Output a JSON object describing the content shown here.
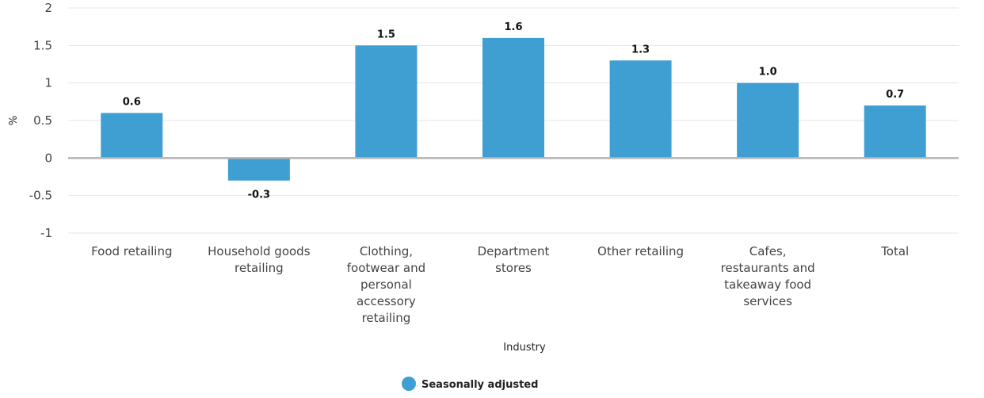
{
  "chart_data": {
    "type": "bar",
    "categories": [
      "Food retailing",
      "Household goods retailing",
      "Clothing, footwear and personal accessory retailing",
      "Department stores",
      "Other retailing",
      "Cafes, restaurants and takeaway food services",
      "Total"
    ],
    "category_label_lines": [
      [
        "Food retailing"
      ],
      [
        "Household goods",
        "retailing"
      ],
      [
        "Clothing,",
        "footwear and",
        "personal",
        "accessory",
        "retailing"
      ],
      [
        "Department",
        "stores"
      ],
      [
        "Other retailing"
      ],
      [
        "Cafes,",
        "restaurants and",
        "takeaway food",
        "services"
      ],
      [
        "Total"
      ]
    ],
    "series": [
      {
        "name": "Seasonally adjusted",
        "values": [
          0.6,
          -0.3,
          1.5,
          1.6,
          1.3,
          1.0,
          0.7
        ],
        "data_labels": [
          "0.6",
          "-0.3",
          "1.5",
          "1.6",
          "1.3",
          "1.0",
          "0.7"
        ],
        "color": "#3f9fd3"
      }
    ],
    "xlabel": "Industry",
    "ylabel": "%",
    "ylim": [
      -1,
      2
    ],
    "yticks": [
      "2",
      "1.5",
      "1",
      "0.5",
      "0",
      "-0.5",
      "-1"
    ],
    "ytick_values": [
      2,
      1.5,
      1,
      0.5,
      0,
      -0.5,
      -1
    ],
    "grid": true,
    "legend_position": "bottom-center"
  },
  "colors": {
    "bar": "#3f9fd3",
    "grid": "#e6e6e6",
    "zero_line": "#b3b3b3"
  }
}
